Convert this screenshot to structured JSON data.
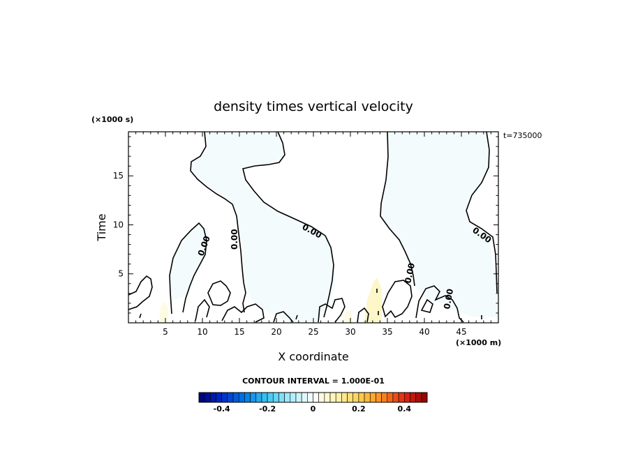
{
  "chart_data": {
    "type": "heatmap",
    "title": "density times vertical velocity",
    "xlabel": "X coordinate",
    "ylabel": "Time",
    "x_unit": "(×1000 m)",
    "y_unit": "(×1000 s)",
    "time_label": "t=735000",
    "xlim": [
      0,
      50
    ],
    "ylim": [
      0,
      19.5
    ],
    "x_ticks": [
      "5",
      "10",
      "15",
      "20",
      "25",
      "30",
      "35",
      "40",
      "45"
    ],
    "y_ticks": [
      "5",
      "10",
      "15"
    ],
    "contour_label": "0.00",
    "contour_interval_text": "CONTOUR INTERVAL = 1.000E-01",
    "colorbar": {
      "range": [
        -0.5,
        0.5
      ],
      "tick_labels": [
        "-0.4",
        "-0.2",
        "0",
        "0.2",
        "0.4"
      ],
      "tick_values": [
        -0.4,
        -0.2,
        0,
        0.2,
        0.4
      ]
    }
  }
}
